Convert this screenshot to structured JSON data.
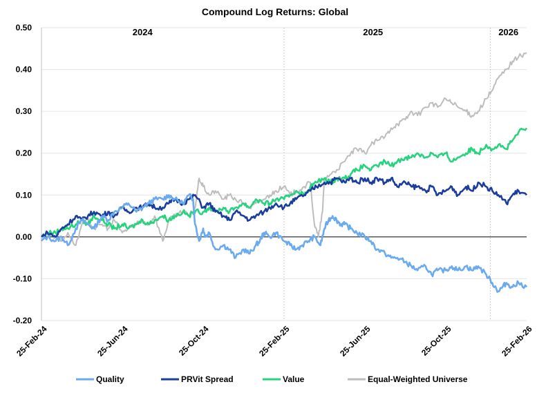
{
  "chart_data": {
    "type": "line",
    "title": "Compound  Log Returns: Global",
    "xlabel": "",
    "ylabel": "",
    "ylim": [
      -0.2,
      0.5
    ],
    "y_ticks": [
      "0.50",
      "0.40",
      "0.30",
      "0.20",
      "0.10",
      "0.00",
      "-0.10",
      "-0.20"
    ],
    "y_tick_values": [
      0.5,
      0.4,
      0.3,
      0.2,
      0.1,
      0.0,
      -0.1,
      -0.2
    ],
    "x_range_months": [
      0,
      24
    ],
    "x_tick_labels": [
      "25-Feb-24",
      "25-Jun-24",
      "25-Oct-24",
      "25-Feb-25",
      "25-Jun-25",
      "25-Oct-25",
      "25-Feb-26"
    ],
    "x_tick_months": [
      0,
      4,
      8,
      12,
      16,
      20,
      24
    ],
    "year_dividers_months": [
      12,
      22.2
    ],
    "year_labels": [
      {
        "text": "2024",
        "month": 5
      },
      {
        "text": "2025",
        "month": 16.4
      },
      {
        "text": "2026",
        "month": 23.1
      }
    ],
    "grid": "horizontal",
    "legend_position": "bottom",
    "series": [
      {
        "name": "Quality",
        "color": "#6aaaf0",
        "x": [
          0,
          0.3,
          0.7,
          1.0,
          1.3,
          1.7,
          2.0,
          2.3,
          2.6,
          3.0,
          3.3,
          3.6,
          4.0,
          4.3,
          4.7,
          5.0,
          5.3,
          5.6,
          6.0,
          6.3,
          6.6,
          7.0,
          7.3,
          7.5,
          7.6,
          7.8,
          8.0,
          8.1,
          8.3,
          8.6,
          9.0,
          9.3,
          9.6,
          10.0,
          10.3,
          10.6,
          10.8,
          11.0,
          11.3,
          11.6,
          12.0,
          12.3,
          12.6,
          12.9,
          13.2,
          13.5,
          13.8,
          14.0,
          14.2,
          14.4,
          14.6,
          14.8,
          15.0,
          15.3,
          15.6,
          16.0,
          16.3,
          16.6,
          17.0,
          17.3,
          17.6,
          18.0,
          18.3,
          18.6,
          19.0,
          19.3,
          19.6,
          20.0,
          20.3,
          20.6,
          21.0,
          21.3,
          21.6,
          22.0,
          22.3,
          22.6,
          22.8,
          23.0,
          23.3,
          23.6,
          24.0
        ],
        "values": [
          -0.01,
          0.0,
          -0.01,
          0.0,
          -0.02,
          0.02,
          0.04,
          0.03,
          0.02,
          0.05,
          0.04,
          0.06,
          0.07,
          0.08,
          0.06,
          0.07,
          0.08,
          0.09,
          0.09,
          0.1,
          0.09,
          0.08,
          0.1,
          0.09,
          0.03,
          -0.01,
          0.02,
          0.0,
          0.01,
          -0.03,
          -0.02,
          -0.03,
          -0.05,
          -0.03,
          -0.04,
          -0.02,
          -0.01,
          0.01,
          0.0,
          0.01,
          -0.01,
          -0.02,
          -0.03,
          -0.02,
          -0.01,
          0.0,
          -0.02,
          0.02,
          0.04,
          0.05,
          0.04,
          0.03,
          0.03,
          0.02,
          0.01,
          0.0,
          -0.01,
          -0.03,
          -0.04,
          -0.05,
          -0.05,
          -0.06,
          -0.07,
          -0.08,
          -0.07,
          -0.09,
          -0.08,
          -0.08,
          -0.07,
          -0.08,
          -0.07,
          -0.08,
          -0.07,
          -0.09,
          -0.11,
          -0.13,
          -0.12,
          -0.11,
          -0.12,
          -0.11,
          -0.12
        ]
      },
      {
        "name": "PRVit Spread",
        "color": "#1a3d9e",
        "x": [
          0,
          0.3,
          0.7,
          1.0,
          1.3,
          1.7,
          2.0,
          2.3,
          2.6,
          3.0,
          3.3,
          3.6,
          4.0,
          4.3,
          4.7,
          5.0,
          5.3,
          5.6,
          6.0,
          6.3,
          6.6,
          7.0,
          7.3,
          7.6,
          8.0,
          8.3,
          8.6,
          9.0,
          9.3,
          9.6,
          10.0,
          10.3,
          10.6,
          11.0,
          11.3,
          11.6,
          12.0,
          12.3,
          12.6,
          13.0,
          13.3,
          13.6,
          14.0,
          14.3,
          14.6,
          15.0,
          15.3,
          15.6,
          16.0,
          16.3,
          16.6,
          17.0,
          17.3,
          17.6,
          18.0,
          18.3,
          18.6,
          19.0,
          19.3,
          19.6,
          20.0,
          20.3,
          20.6,
          21.0,
          21.3,
          21.6,
          22.0,
          22.3,
          22.6,
          23.0,
          23.3,
          23.6,
          24.0
        ],
        "values": [
          0.0,
          0.01,
          0.0,
          0.02,
          0.03,
          0.05,
          0.04,
          0.05,
          0.06,
          0.05,
          0.06,
          0.05,
          0.07,
          0.06,
          0.07,
          0.07,
          0.08,
          0.07,
          0.07,
          0.08,
          0.09,
          0.08,
          0.09,
          0.1,
          0.07,
          0.08,
          0.06,
          0.05,
          0.04,
          0.06,
          0.05,
          0.04,
          0.05,
          0.06,
          0.07,
          0.08,
          0.07,
          0.08,
          0.09,
          0.1,
          0.11,
          0.12,
          0.13,
          0.13,
          0.14,
          0.13,
          0.14,
          0.13,
          0.14,
          0.13,
          0.14,
          0.13,
          0.14,
          0.12,
          0.13,
          0.12,
          0.12,
          0.11,
          0.12,
          0.1,
          0.11,
          0.12,
          0.1,
          0.12,
          0.11,
          0.13,
          0.12,
          0.11,
          0.1,
          0.08,
          0.1,
          0.11,
          0.1
        ]
      },
      {
        "name": "Value",
        "color": "#28d37e",
        "x": [
          0,
          0.3,
          0.7,
          1.0,
          1.3,
          1.7,
          2.0,
          2.3,
          2.6,
          3.0,
          3.3,
          3.6,
          4.0,
          4.3,
          4.7,
          5.0,
          5.3,
          5.6,
          6.0,
          6.3,
          6.6,
          7.0,
          7.3,
          7.6,
          8.0,
          8.3,
          8.6,
          9.0,
          9.3,
          9.6,
          10.0,
          10.3,
          10.6,
          11.0,
          11.3,
          11.6,
          12.0,
          12.3,
          12.6,
          13.0,
          13.3,
          13.6,
          14.0,
          14.3,
          14.6,
          15.0,
          15.3,
          15.6,
          16.0,
          16.3,
          16.6,
          17.0,
          17.3,
          17.6,
          18.0,
          18.3,
          18.6,
          19.0,
          19.3,
          19.6,
          20.0,
          20.3,
          20.6,
          21.0,
          21.3,
          21.6,
          22.0,
          22.3,
          22.6,
          23.0,
          23.3,
          23.6,
          24.0
        ],
        "values": [
          0.0,
          0.01,
          0.01,
          0.02,
          0.02,
          0.03,
          0.04,
          0.03,
          0.05,
          0.04,
          0.03,
          0.02,
          0.03,
          0.02,
          0.03,
          0.04,
          0.03,
          0.04,
          0.05,
          0.04,
          0.05,
          0.06,
          0.05,
          0.06,
          0.06,
          0.07,
          0.06,
          0.07,
          0.06,
          0.07,
          0.08,
          0.07,
          0.09,
          0.08,
          0.08,
          0.09,
          0.09,
          0.1,
          0.11,
          0.1,
          0.12,
          0.13,
          0.14,
          0.13,
          0.14,
          0.14,
          0.15,
          0.16,
          0.17,
          0.16,
          0.17,
          0.18,
          0.17,
          0.18,
          0.19,
          0.19,
          0.2,
          0.19,
          0.2,
          0.19,
          0.2,
          0.18,
          0.19,
          0.2,
          0.21,
          0.2,
          0.22,
          0.21,
          0.22,
          0.21,
          0.23,
          0.25,
          0.26
        ]
      },
      {
        "name": "Equal-Weighted Universe",
        "color": "#bdbdbd",
        "x": [
          0,
          0.3,
          0.7,
          1.0,
          1.3,
          1.7,
          2.0,
          2.3,
          2.6,
          3.0,
          3.3,
          3.6,
          4.0,
          4.3,
          4.7,
          5.0,
          5.3,
          5.6,
          6.0,
          6.3,
          6.6,
          7.0,
          7.3,
          7.6,
          7.8,
          8.0,
          8.3,
          8.6,
          9.0,
          9.3,
          9.6,
          10.0,
          10.3,
          10.6,
          11.0,
          11.3,
          11.6,
          12.0,
          12.3,
          12.6,
          13.0,
          13.3,
          13.5,
          13.7,
          13.9,
          14.0,
          14.3,
          14.6,
          15.0,
          15.3,
          15.6,
          16.0,
          16.3,
          16.6,
          17.0,
          17.3,
          17.6,
          18.0,
          18.3,
          18.6,
          19.0,
          19.3,
          19.6,
          20.0,
          20.3,
          20.6,
          21.0,
          21.3,
          21.6,
          22.0,
          22.3,
          22.6,
          23.0,
          23.3,
          23.6,
          24.0
        ],
        "values": [
          0.0,
          0.01,
          0.0,
          -0.01,
          0.01,
          -0.02,
          0.03,
          0.04,
          0.02,
          0.03,
          0.02,
          0.04,
          0.01,
          0.02,
          0.03,
          0.04,
          0.03,
          0.05,
          -0.01,
          0.04,
          0.05,
          0.06,
          0.05,
          0.07,
          0.14,
          0.12,
          0.1,
          0.11,
          0.09,
          0.1,
          0.09,
          0.08,
          0.07,
          0.08,
          0.09,
          0.1,
          0.11,
          0.12,
          0.1,
          0.11,
          0.12,
          0.13,
          0.03,
          0.0,
          0.06,
          0.14,
          0.15,
          0.16,
          0.18,
          0.2,
          0.21,
          0.2,
          0.22,
          0.23,
          0.24,
          0.26,
          0.27,
          0.28,
          0.3,
          0.29,
          0.31,
          0.32,
          0.31,
          0.33,
          0.32,
          0.31,
          0.3,
          0.29,
          0.3,
          0.33,
          0.35,
          0.38,
          0.4,
          0.42,
          0.43,
          0.44
        ]
      }
    ]
  }
}
